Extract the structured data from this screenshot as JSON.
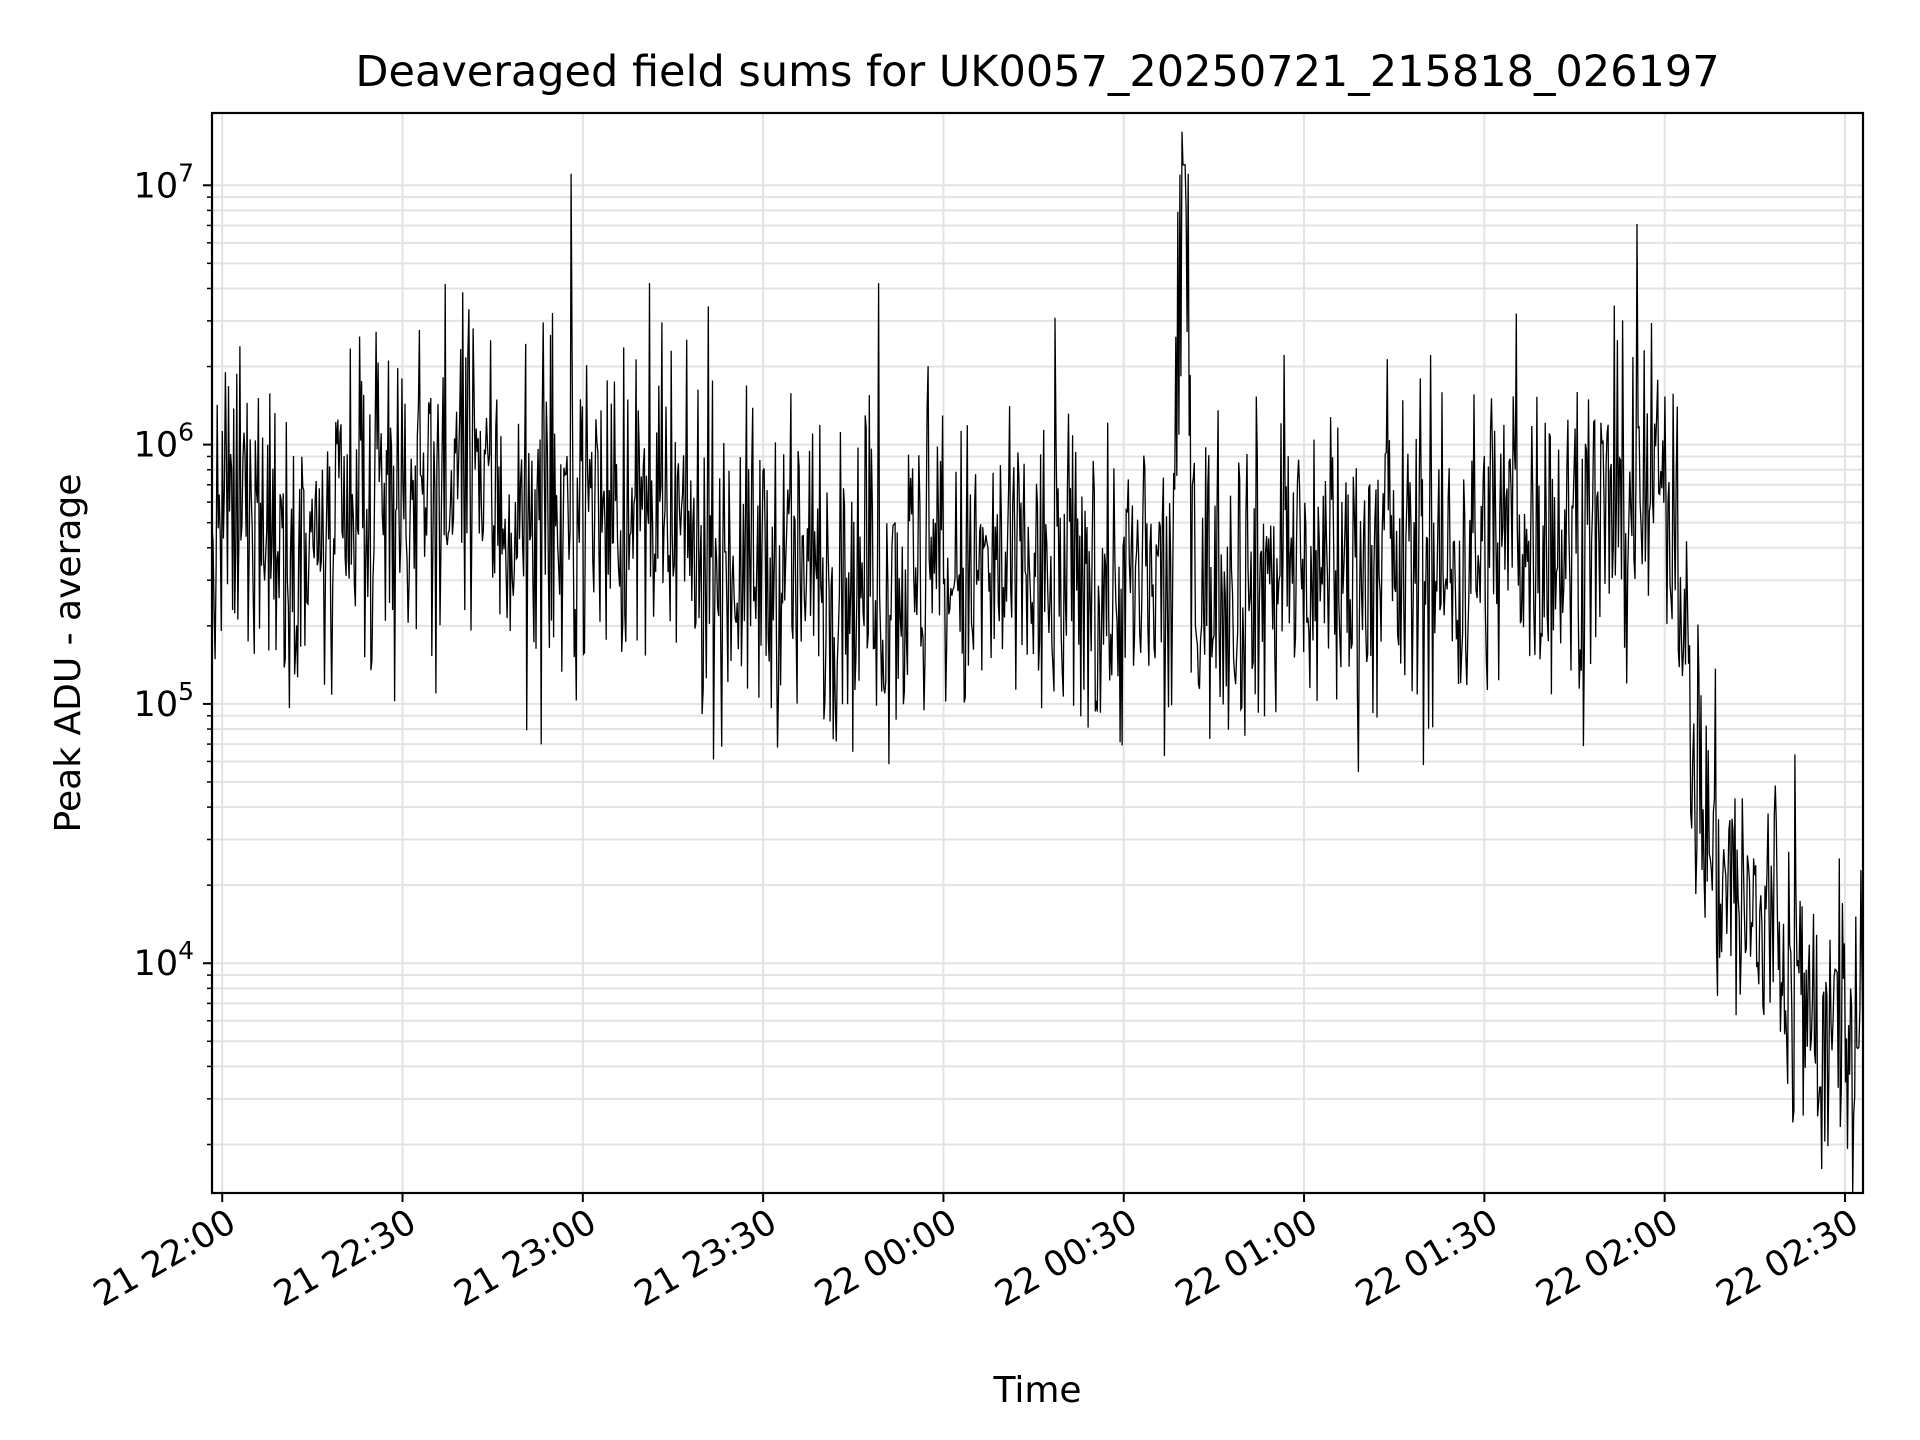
{
  "chart_data": {
    "type": "line",
    "title": "Deaveraged field sums for UK0057_20250721_215818_026197",
    "xlabel": "Time",
    "ylabel": "Peak ADU - average",
    "x_scale": "time",
    "y_scale": "log",
    "xlim": [
      "2025-07-21 21:58:18",
      "2025-07-22 02:33:00"
    ],
    "ylim": [
      1300,
      19000000
    ],
    "grid": true,
    "legend": "none",
    "line_color": "#000000",
    "x_ticks": [
      {
        "value": "2025-07-21 22:00:00",
        "label": "21 22:00"
      },
      {
        "value": "2025-07-21 22:30:00",
        "label": "21 22:30"
      },
      {
        "value": "2025-07-21 23:00:00",
        "label": "21 23:00"
      },
      {
        "value": "2025-07-21 23:30:00",
        "label": "21 23:30"
      },
      {
        "value": "2025-07-22 00:00:00",
        "label": "22 00:00"
      },
      {
        "value": "2025-07-22 00:30:00",
        "label": "22 00:30"
      },
      {
        "value": "2025-07-22 01:00:00",
        "label": "22 01:00"
      },
      {
        "value": "2025-07-22 01:30:00",
        "label": "22 01:30"
      },
      {
        "value": "2025-07-22 02:00:00",
        "label": "22 02:00"
      },
      {
        "value": "2025-07-22 02:30:00",
        "label": "22 02:30"
      }
    ],
    "y_ticks": [
      {
        "value": 10000,
        "base": "10",
        "exp": "4"
      },
      {
        "value": 100000,
        "base": "10",
        "exp": "5"
      },
      {
        "value": 1000000,
        "base": "10",
        "exp": "6"
      },
      {
        "value": 10000000,
        "base": "10",
        "exp": "7"
      }
    ],
    "series": [
      {
        "x": [
          "2025-07-21 21:58:18",
          "2025-07-21 22:00:00",
          "2025-07-21 22:03:00",
          "2025-07-21 22:06:00",
          "2025-07-21 22:09:00",
          "2025-07-21 22:12:00",
          "2025-07-21 22:15:00",
          "2025-07-21 22:18:00",
          "2025-07-21 22:21:00",
          "2025-07-21 22:24:00",
          "2025-07-21 22:27:00",
          "2025-07-21 22:30:00",
          "2025-07-21 22:33:00",
          "2025-07-21 22:36:00",
          "2025-07-21 22:39:00",
          "2025-07-21 22:42:00",
          "2025-07-21 22:45:00",
          "2025-07-21 22:48:00",
          "2025-07-21 22:51:00",
          "2025-07-21 22:54:00",
          "2025-07-21 22:57:00",
          "2025-07-21 23:00:00",
          "2025-07-21 23:05:00",
          "2025-07-21 23:10:00",
          "2025-07-21 23:15:00",
          "2025-07-21 23:20:00",
          "2025-07-21 23:25:00",
          "2025-07-21 23:30:00",
          "2025-07-21 23:35:00",
          "2025-07-21 23:40:00",
          "2025-07-21 23:45:00",
          "2025-07-21 23:50:00",
          "2025-07-21 23:55:00",
          "2025-07-22 00:00:00",
          "2025-07-22 00:05:00",
          "2025-07-22 00:10:00",
          "2025-07-22 00:15:00",
          "2025-07-22 00:20:00",
          "2025-07-22 00:25:00",
          "2025-07-22 00:30:00",
          "2025-07-22 00:35:00",
          "2025-07-22 00:38:00",
          "2025-07-22 00:40:00",
          "2025-07-22 00:42:00",
          "2025-07-22 00:45:00",
          "2025-07-22 00:50:00",
          "2025-07-22 00:55:00",
          "2025-07-22 01:00:00",
          "2025-07-22 01:05:00",
          "2025-07-22 01:10:00",
          "2025-07-22 01:15:00",
          "2025-07-22 01:20:00",
          "2025-07-22 01:25:00",
          "2025-07-22 01:30:00",
          "2025-07-22 01:35:00",
          "2025-07-22 01:40:00",
          "2025-07-22 01:45:00",
          "2025-07-22 01:50:00",
          "2025-07-22 01:55:00",
          "2025-07-22 02:00:00",
          "2025-07-22 02:02:00",
          "2025-07-22 02:04:00",
          "2025-07-22 02:06:00",
          "2025-07-22 02:08:00",
          "2025-07-22 02:10:00",
          "2025-07-22 02:12:00",
          "2025-07-22 02:14:00",
          "2025-07-22 02:16:00",
          "2025-07-22 02:18:00",
          "2025-07-22 02:20:00",
          "2025-07-22 02:22:00",
          "2025-07-22 02:24:00",
          "2025-07-22 02:26:00",
          "2025-07-22 02:28:00",
          "2025-07-22 02:30:00",
          "2025-07-22 02:32:00",
          "2025-07-22 02:33:00"
        ],
        "y": [
          300000,
          480000,
          520000,
          560000,
          470000,
          450000,
          400000,
          350000,
          420000,
          380000,
          560000,
          620000,
          700000,
          600000,
          720000,
          800000,
          640000,
          480000,
          430000,
          400000,
          520000,
          640000,
          560000,
          480000,
          430000,
          380000,
          350000,
          330000,
          310000,
          310000,
          300000,
          300000,
          305000,
          295000,
          300000,
          305000,
          300000,
          290000,
          280000,
          270000,
          260000,
          250000,
          12000000,
          280000,
          300000,
          310000,
          320000,
          330000,
          325000,
          340000,
          350000,
          330000,
          320000,
          420000,
          500000,
          450000,
          420000,
          500000,
          600000,
          700000,
          650000,
          100000,
          48000,
          25000,
          22000,
          18000,
          14000,
          13000,
          15000,
          10000,
          8000,
          6000,
          5500,
          5000,
          5200,
          5000,
          4800
        ]
      }
    ]
  }
}
